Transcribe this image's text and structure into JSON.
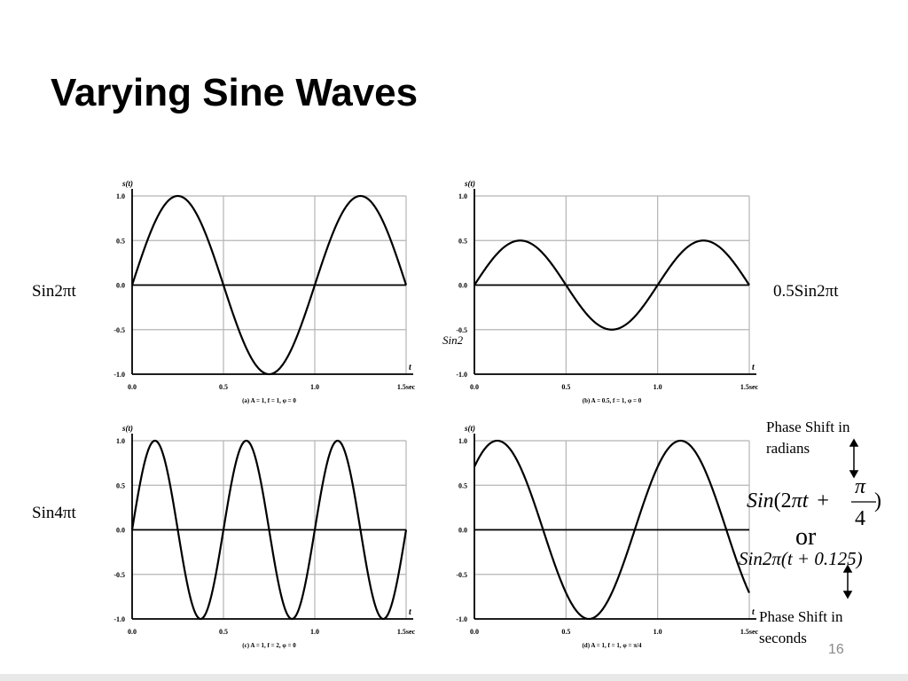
{
  "slide": {
    "title": "Varying Sine Waves",
    "page_number": "16"
  },
  "labels": {
    "chart_a": "Sin2πt",
    "chart_b": "0.5Sin2πt",
    "chart_c": "Sin4πt",
    "stray_b": "Sin2"
  },
  "annotations": {
    "phase_radians_line1": "Phase Shift in",
    "phase_radians_line2": "radians",
    "eq1_lhs": "Sin",
    "eq1_paren_open": "(2",
    "eq1_pi": "π",
    "eq1_t": "t",
    "eq1_plus": "+",
    "eq1_num": "π",
    "eq1_den": "4",
    "eq1_paren_close": ")",
    "or": "or",
    "eq2": "Sin2π(t + 0.125)",
    "phase_seconds_line1": "Phase Shift in",
    "phase_seconds_line2": "seconds"
  },
  "colors": {
    "curve": "#000000",
    "grid": "#b4b4b4",
    "page_number": "#8a8a8a"
  },
  "chart_data": [
    {
      "type": "line",
      "caption": "(a) A = 1, f = 1, φ = 0",
      "ylabel": "s(t)",
      "xlabel": "t",
      "x_ticks": [
        "0.0",
        "0.5",
        "1.0",
        "1.5sec"
      ],
      "y_ticks": [
        "1.0",
        "0.5",
        "0.0",
        "-0.5",
        "-1.0"
      ],
      "xlim": [
        0,
        1.5
      ],
      "ylim": [
        -1,
        1
      ],
      "grid": true,
      "function": {
        "amplitude": 1,
        "frequency": 1,
        "phase": 0
      }
    },
    {
      "type": "line",
      "caption": "(b) A = 0.5, f = 1, φ = 0",
      "ylabel": "s(t)",
      "xlabel": "t",
      "x_ticks": [
        "0.0",
        "0.5",
        "1.0",
        "1.5sec"
      ],
      "y_ticks": [
        "1.0",
        "0.5",
        "0.0",
        "-0.5",
        "-1.0"
      ],
      "xlim": [
        0,
        1.5
      ],
      "ylim": [
        -1,
        1
      ],
      "grid": true,
      "function": {
        "amplitude": 0.5,
        "frequency": 1,
        "phase": 0
      }
    },
    {
      "type": "line",
      "caption": "(c) A = 1, f = 2, φ = 0",
      "ylabel": "s(t)",
      "xlabel": "t",
      "x_ticks": [
        "0.0",
        "0.5",
        "1.0",
        "1.5sec"
      ],
      "y_ticks": [
        "1.0",
        "0.5",
        "0.0",
        "-0.5",
        "-1.0"
      ],
      "xlim": [
        0,
        1.5
      ],
      "ylim": [
        -1,
        1
      ],
      "grid": true,
      "function": {
        "amplitude": 1,
        "frequency": 2,
        "phase": 0
      }
    },
    {
      "type": "line",
      "caption": "(d) A = 1, f = 1, φ = π/4",
      "ylabel": "s(t)",
      "xlabel": "t",
      "x_ticks": [
        "0.0",
        "0.5",
        "1.0",
        "1.5sec"
      ],
      "y_ticks": [
        "1.0",
        "0.5",
        "0.0",
        "-0.5",
        "-1.0"
      ],
      "xlim": [
        0,
        1.5
      ],
      "ylim": [
        -1,
        1
      ],
      "grid": true,
      "function": {
        "amplitude": 1,
        "frequency": 1,
        "phase": 0.7853981634
      }
    }
  ]
}
